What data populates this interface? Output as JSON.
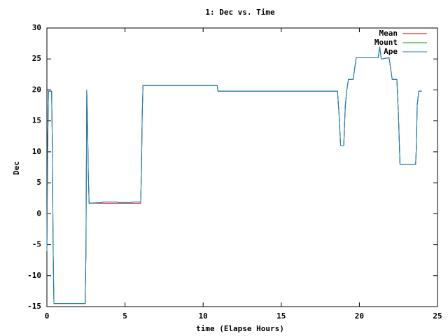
{
  "chart_data": {
    "type": "line",
    "title": "1: Dec vs. Time",
    "x_label": "time (Elapse Hours)",
    "y_label": "Dec",
    "x": [
      0,
      0.05,
      0.1,
      0.3,
      0.35,
      0.4,
      0.45,
      2.45,
      2.5,
      2.55,
      2.6,
      2.65,
      2.7,
      3.5,
      3.6,
      4.5,
      4.6,
      5.4,
      5.5,
      6.0,
      6.05,
      6.1,
      6.15,
      10.9,
      10.95,
      18.6,
      18.7,
      18.8,
      19.0,
      19.1,
      19.2,
      19.3,
      19.4,
      19.6,
      19.7,
      19.8,
      21.2,
      21.3,
      21.4,
      21.9,
      22.0,
      22.1,
      22.4,
      22.5,
      22.6,
      23.6,
      23.65,
      23.7,
      23.8,
      24.0
    ],
    "series": [
      {
        "name": "Mean",
        "color": "#cc0000",
        "values": [
          -6,
          11,
          19.8,
          19.8,
          11,
          -6,
          -14.5,
          -14.5,
          -6,
          20,
          15,
          6.5,
          1.7,
          1.7,
          1.7,
          1.7,
          1.7,
          1.7,
          1.7,
          1.7,
          6.5,
          16,
          20.7,
          20.7,
          19.8,
          19.8,
          16,
          11,
          11,
          17.5,
          20,
          21.7,
          21.7,
          21.7,
          23.5,
          25.2,
          25.2,
          27,
          25,
          25.2,
          23.5,
          21.7,
          21.7,
          16,
          8,
          8,
          11,
          17.5,
          19.8,
          19.8
        ]
      },
      {
        "name": "Mount",
        "color": "#00a000",
        "values": [
          -6,
          11,
          19.8,
          19.8,
          11,
          -6,
          -14.5,
          -14.5,
          -6,
          20,
          15,
          6.5,
          1.7,
          1.8,
          1.9,
          1.9,
          1.8,
          1.8,
          1.9,
          1.9,
          6.5,
          16,
          20.7,
          20.7,
          19.8,
          19.8,
          16,
          11,
          11,
          17.5,
          20,
          21.7,
          21.7,
          21.7,
          23.5,
          25.2,
          25.2,
          27,
          25,
          25.2,
          23.5,
          21.7,
          21.7,
          16,
          8,
          8,
          11,
          17.5,
          19.8,
          19.8
        ]
      },
      {
        "name": "Ape",
        "color": "#1a7fc8",
        "values": [
          -6,
          11,
          19.8,
          19.8,
          11,
          -6,
          -14.5,
          -14.5,
          -6,
          20,
          15,
          6.5,
          1.7,
          1.8,
          1.9,
          1.9,
          1.8,
          1.8,
          1.9,
          1.9,
          6.5,
          16,
          20.7,
          20.7,
          19.8,
          19.8,
          16,
          11,
          11,
          17.5,
          20,
          21.7,
          21.7,
          21.7,
          23.5,
          25.2,
          25.2,
          27,
          25,
          25.2,
          23.5,
          21.7,
          21.7,
          16,
          8,
          8,
          11,
          17.5,
          19.8,
          19.8
        ]
      }
    ],
    "xlim": [
      0,
      25
    ],
    "xticks": [
      0,
      5,
      10,
      15,
      20,
      25
    ],
    "ylim": [
      -15,
      30
    ],
    "yticks": [
      -15,
      -10,
      -5,
      0,
      5,
      10,
      15,
      20,
      25,
      30
    ],
    "legend": "top-right"
  }
}
